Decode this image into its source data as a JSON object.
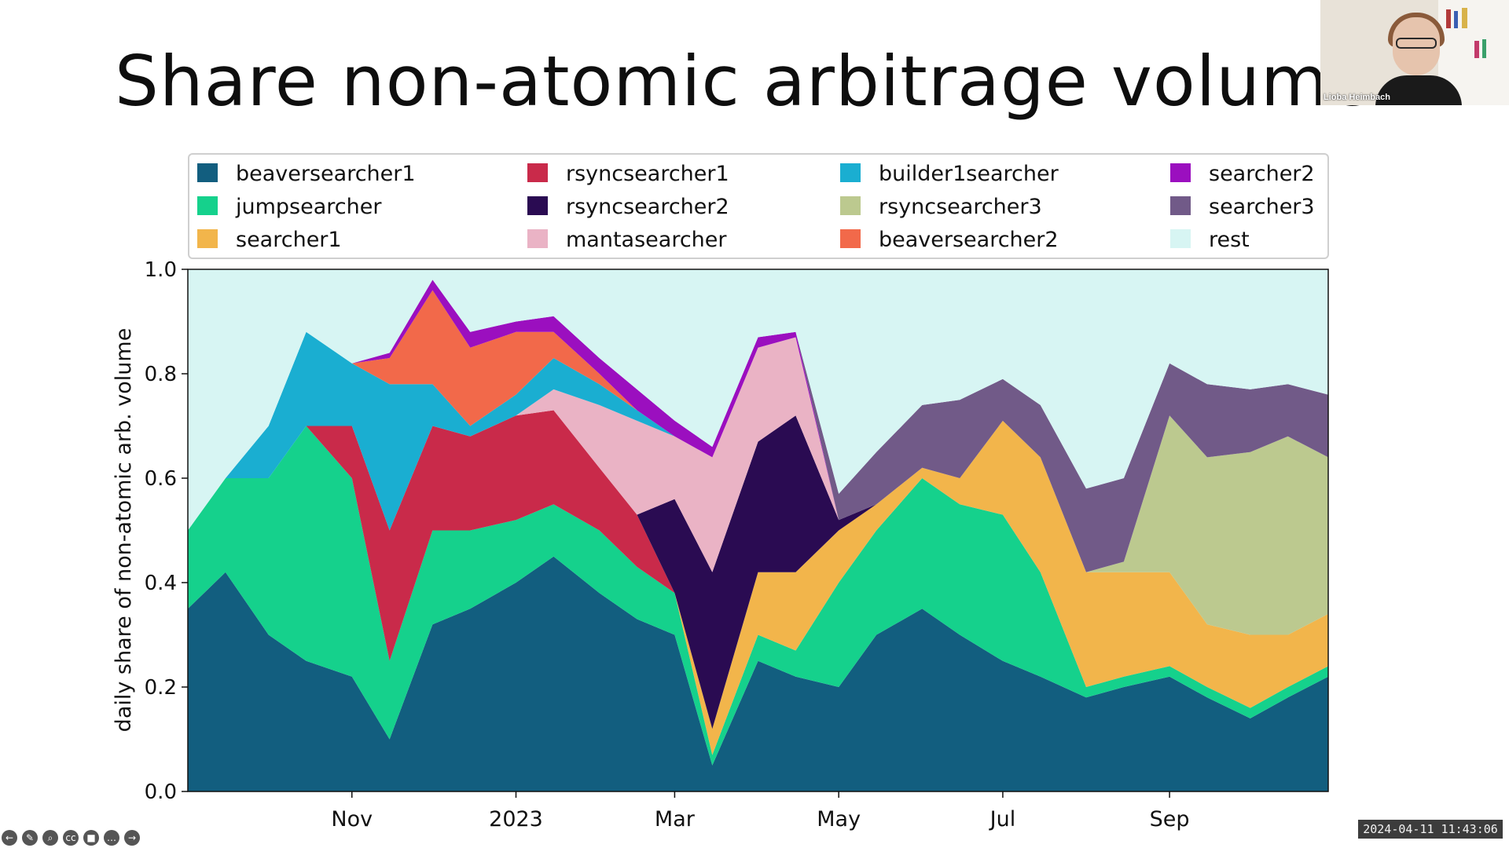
{
  "slide": {
    "title": "Share non-atomic arbitrage volume"
  },
  "video": {
    "participant_name": "Lioba Heimbach"
  },
  "timestamp": "2024-04-11 11:43:06",
  "toolbar": [
    {
      "icon": "back-arrow-icon",
      "glyph": "←"
    },
    {
      "icon": "pen-icon",
      "glyph": "✎"
    },
    {
      "icon": "zoom-icon",
      "glyph": "⌕"
    },
    {
      "icon": "captions-icon",
      "glyph": "cc"
    },
    {
      "icon": "camera-icon",
      "glyph": "■"
    },
    {
      "icon": "more-icon",
      "glyph": "…"
    },
    {
      "icon": "forward-arrow-icon",
      "glyph": "→"
    }
  ],
  "chart_data": {
    "type": "area",
    "stacked": true,
    "ylabel": "daily share of non-atomic arb. volume",
    "ylim": [
      0.0,
      1.0
    ],
    "yticks": [
      "0.0",
      "0.2",
      "0.4",
      "0.6",
      "0.8",
      "1.0"
    ],
    "x_ticks": [
      "Nov",
      "2023",
      "Mar",
      "May",
      "Jul",
      "Sep"
    ],
    "x": [
      "2022-09-01",
      "2022-09-15",
      "2022-10-01",
      "2022-10-15",
      "2022-11-01",
      "2022-11-15",
      "2022-12-01",
      "2022-12-15",
      "2023-01-01",
      "2023-01-15",
      "2023-02-01",
      "2023-02-15",
      "2023-03-01",
      "2023-03-15",
      "2023-04-01",
      "2023-04-15",
      "2023-05-01",
      "2023-05-15",
      "2023-06-01",
      "2023-06-15",
      "2023-07-01",
      "2023-07-15",
      "2023-08-01",
      "2023-08-15",
      "2023-09-01",
      "2023-09-15",
      "2023-10-01",
      "2023-10-15",
      "2023-10-30"
    ],
    "legend_placement": "top",
    "grid": false,
    "series": [
      {
        "name": "beaversearcher1",
        "color": "#125e7f",
        "values": [
          0.35,
          0.42,
          0.3,
          0.25,
          0.22,
          0.1,
          0.32,
          0.35,
          0.4,
          0.45,
          0.38,
          0.33,
          0.3,
          0.05,
          0.25,
          0.22,
          0.2,
          0.3,
          0.35,
          0.3,
          0.25,
          0.22,
          0.18,
          0.2,
          0.22,
          0.18,
          0.14,
          0.18,
          0.22
        ]
      },
      {
        "name": "jumpsearcher",
        "color": "#15d18c",
        "values": [
          0.15,
          0.18,
          0.3,
          0.45,
          0.38,
          0.15,
          0.18,
          0.15,
          0.12,
          0.1,
          0.12,
          0.1,
          0.08,
          0.02,
          0.05,
          0.05,
          0.2,
          0.2,
          0.25,
          0.25,
          0.28,
          0.2,
          0.02,
          0.02,
          0.02,
          0.02,
          0.02,
          0.02,
          0.02
        ]
      },
      {
        "name": "searcher1",
        "color": "#f2b54b",
        "values": [
          0.0,
          0.0,
          0.0,
          0.0,
          0.0,
          0.0,
          0.0,
          0.0,
          0.0,
          0.0,
          0.0,
          0.0,
          0.0,
          0.05,
          0.12,
          0.15,
          0.1,
          0.05,
          0.02,
          0.05,
          0.18,
          0.22,
          0.22,
          0.2,
          0.18,
          0.12,
          0.14,
          0.1,
          0.1
        ]
      },
      {
        "name": "rsyncsearcher1",
        "color": "#c92a4a",
        "values": [
          0.0,
          0.0,
          0.0,
          0.0,
          0.1,
          0.25,
          0.2,
          0.18,
          0.2,
          0.18,
          0.12,
          0.1,
          0.0,
          0.0,
          0.0,
          0.0,
          0.0,
          0.0,
          0.0,
          0.0,
          0.0,
          0.0,
          0.0,
          0.0,
          0.0,
          0.0,
          0.0,
          0.0,
          0.0
        ]
      },
      {
        "name": "rsyncsearcher2",
        "color": "#2a0b52",
        "values": [
          0.0,
          0.0,
          0.0,
          0.0,
          0.0,
          0.0,
          0.0,
          0.0,
          0.0,
          0.0,
          0.0,
          0.0,
          0.18,
          0.3,
          0.25,
          0.3,
          0.02,
          0.0,
          0.0,
          0.0,
          0.0,
          0.0,
          0.0,
          0.0,
          0.0,
          0.0,
          0.0,
          0.0,
          0.0
        ]
      },
      {
        "name": "mantasearcher",
        "color": "#eab3c5",
        "values": [
          0.0,
          0.0,
          0.0,
          0.0,
          0.0,
          0.0,
          0.0,
          0.0,
          0.0,
          0.04,
          0.12,
          0.18,
          0.12,
          0.22,
          0.18,
          0.15,
          0.0,
          0.0,
          0.0,
          0.0,
          0.0,
          0.0,
          0.0,
          0.0,
          0.0,
          0.0,
          0.0,
          0.0,
          0.0
        ]
      },
      {
        "name": "builder1searcher",
        "color": "#1aaed1",
        "values": [
          0.0,
          0.0,
          0.1,
          0.18,
          0.12,
          0.28,
          0.08,
          0.02,
          0.04,
          0.06,
          0.04,
          0.02,
          0.0,
          0.0,
          0.0,
          0.0,
          0.0,
          0.0,
          0.0,
          0.0,
          0.0,
          0.0,
          0.0,
          0.0,
          0.0,
          0.0,
          0.0,
          0.0,
          0.0
        ]
      },
      {
        "name": "rsyncsearcher3",
        "color": "#bcc98f",
        "values": [
          0.0,
          0.0,
          0.0,
          0.0,
          0.0,
          0.0,
          0.0,
          0.0,
          0.0,
          0.0,
          0.0,
          0.0,
          0.0,
          0.0,
          0.0,
          0.0,
          0.0,
          0.0,
          0.0,
          0.0,
          0.0,
          0.0,
          0.0,
          0.02,
          0.3,
          0.32,
          0.35,
          0.38,
          0.3
        ]
      },
      {
        "name": "beaversearcher2",
        "color": "#f2694a",
        "values": [
          0.0,
          0.0,
          0.0,
          0.0,
          0.0,
          0.05,
          0.18,
          0.15,
          0.12,
          0.05,
          0.02,
          0.0,
          0.0,
          0.0,
          0.0,
          0.0,
          0.0,
          0.0,
          0.0,
          0.0,
          0.0,
          0.0,
          0.0,
          0.0,
          0.0,
          0.0,
          0.0,
          0.0,
          0.0
        ]
      },
      {
        "name": "searcher2",
        "color": "#9b0fbf",
        "values": [
          0.0,
          0.0,
          0.0,
          0.0,
          0.0,
          0.01,
          0.02,
          0.03,
          0.02,
          0.03,
          0.03,
          0.04,
          0.03,
          0.02,
          0.02,
          0.01,
          0.0,
          0.0,
          0.0,
          0.0,
          0.0,
          0.0,
          0.0,
          0.0,
          0.0,
          0.0,
          0.0,
          0.0,
          0.0
        ]
      },
      {
        "name": "searcher3",
        "color": "#715a88",
        "values": [
          0.0,
          0.0,
          0.0,
          0.0,
          0.0,
          0.0,
          0.0,
          0.0,
          0.0,
          0.0,
          0.0,
          0.0,
          0.0,
          0.0,
          0.0,
          0.0,
          0.05,
          0.1,
          0.12,
          0.15,
          0.08,
          0.1,
          0.16,
          0.16,
          0.1,
          0.14,
          0.12,
          0.1,
          0.12
        ]
      },
      {
        "name": "rest",
        "color": "#d7f5f3",
        "values": [
          0.5,
          0.4,
          0.3,
          0.12,
          0.18,
          0.16,
          0.02,
          0.12,
          0.1,
          0.09,
          0.17,
          0.23,
          0.29,
          0.34,
          0.18,
          0.12,
          0.43,
          0.35,
          0.26,
          0.25,
          0.21,
          0.26,
          0.42,
          0.4,
          0.18,
          0.22,
          0.23,
          0.22,
          0.24
        ]
      }
    ]
  }
}
